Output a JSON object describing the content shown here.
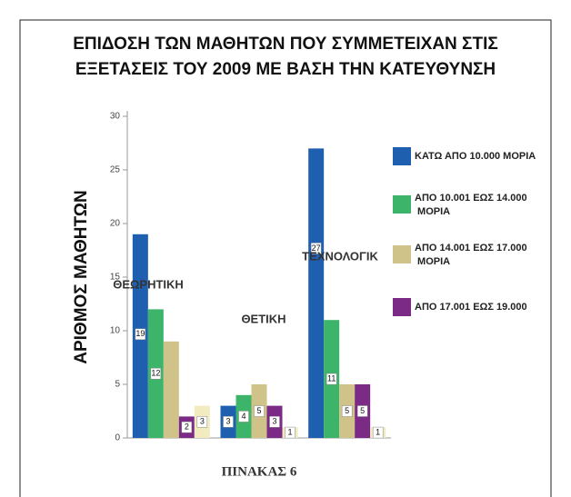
{
  "chart_data": {
    "type": "bar",
    "title_lines": [
      "ΕΠΙΔΟΣΗ ΤΩΝ ΜΑΘΗΤΩΝ ΠΟΥ ΣΥΜΜΕΤΕΙΧΑΝ ΣΤΙΣ",
      "ΕΞΕΤΑΣΕΙΣ ΤΟΥ 2009 ΜΕ ΒΑΣΗ ΤΗΝ ΚΑΤΕΥΘΥΝΣΗ"
    ],
    "y_label": "ΑΡΙΘΜΟΣ ΜΑΘΗΤΩΝ",
    "footer": "ΠΙΝΑΚΑΣ 6",
    "categories": [
      "ΘΕΩΡΗΤΙΚΗ",
      "ΘΕΤΙΚΗ",
      "ΤΕΧΝΟΛΟΓΙΚ"
    ],
    "series": [
      {
        "name": "ΚΑΤΩ ΑΠΟ 10.000 ΜΟΡΙΑ",
        "color": "#1f5fb0",
        "values": [
          19,
          3,
          27
        ]
      },
      {
        "name": "ΑΠΟ 10.001 ΕΩΣ 14.000 ΜΟΡΙΑ",
        "color": "#3cb46a",
        "values": [
          12,
          4,
          11
        ]
      },
      {
        "name": "ΑΠΟ 14.001 ΕΩΣ 17.000 ΜΟΡΙΑ",
        "color": "#cfc38a",
        "values": [
          9,
          5,
          5
        ],
        "value_labels": [
          null,
          "5",
          "5"
        ]
      },
      {
        "name": "ΑΠΟ 17.001 ΕΩΣ  19.000",
        "color": "#7b2a86",
        "values": [
          2,
          3,
          5
        ]
      },
      {
        "color": "#f2ebbf",
        "values": [
          3,
          1,
          1
        ]
      }
    ],
    "ylim": [
      0,
      30
    ],
    "yticks": [
      0,
      5,
      10,
      15,
      20,
      25,
      30
    ]
  }
}
